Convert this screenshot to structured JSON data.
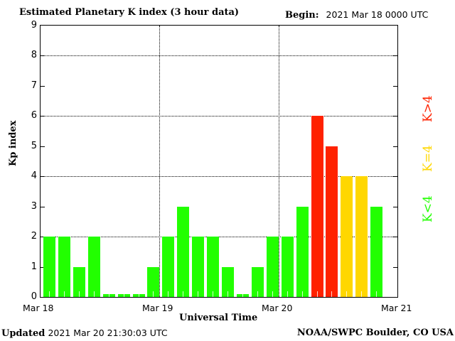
{
  "header": {
    "title": "Estimated Planetary K index (3 hour data)",
    "begin_label": "Begin:",
    "begin_value": "2021 Mar 18 0000 UTC"
  },
  "footer": {
    "updated_label": "Updated",
    "updated_value": "2021 Mar 20 21:30:03 UTC",
    "credit": "NOAA/SWPC Boulder, CO USA"
  },
  "legend": [
    {
      "label": "K>4",
      "color": "#ff2200"
    },
    {
      "label": "K=4",
      "color": "#ffd700"
    },
    {
      "label": "K<4",
      "color": "#22ff00"
    }
  ],
  "colors": {
    "below4": "#22ff00",
    "equal4": "#ffd700",
    "above4": "#ff2200"
  },
  "chart_data": {
    "type": "bar",
    "title": "Estimated Planetary K index (3 hour data)",
    "xlabel": "Universal Time",
    "ylabel": "Kp index",
    "ylim": [
      0,
      9
    ],
    "yticks": [
      "0",
      "1",
      "2",
      "3",
      "4",
      "5",
      "6",
      "7",
      "8",
      "9"
    ],
    "xtick_labels": [
      "Mar 18",
      "Mar 19",
      "Mar 20",
      "Mar 21"
    ],
    "grid": {
      "horizontal": [
        2,
        4,
        6,
        8
      ],
      "vertical": [
        "Mar 19",
        "Mar 20"
      ],
      "style": "dotted"
    },
    "legend_position": "right",
    "categories": [
      "Mar 18 00",
      "Mar 18 03",
      "Mar 18 06",
      "Mar 18 09",
      "Mar 18 12",
      "Mar 18 15",
      "Mar 18 18",
      "Mar 18 21",
      "Mar 19 00",
      "Mar 19 03",
      "Mar 19 06",
      "Mar 19 09",
      "Mar 19 12",
      "Mar 19 15",
      "Mar 19 18",
      "Mar 19 21",
      "Mar 20 00",
      "Mar 20 03",
      "Mar 20 06",
      "Mar 20 09",
      "Mar 20 12",
      "Mar 20 15",
      "Mar 20 18"
    ],
    "values": [
      2,
      2,
      1,
      2,
      0,
      0,
      0,
      1,
      2,
      3,
      2,
      2,
      1,
      0,
      1,
      2,
      2,
      3,
      6,
      5,
      4,
      4,
      3
    ]
  },
  "axes": {
    "ylabel": "Kp index",
    "xlabel": "Universal Time"
  }
}
